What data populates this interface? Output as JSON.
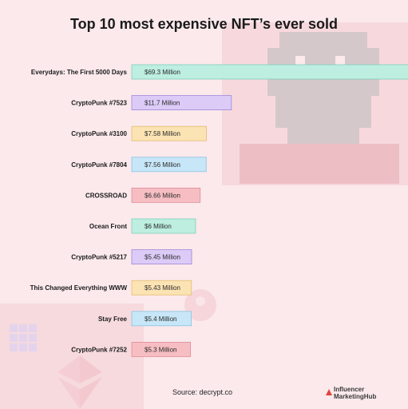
{
  "chart_data": {
    "type": "bar",
    "orientation": "horizontal",
    "title": "Top 10 most expensive NFT’s ever sold",
    "unit": "Million USD",
    "categories": [
      "Everydays: The First 5000 Days",
      "CryptoPunk #7523",
      "CryptoPunk #3100",
      "CryptoPunk #7804",
      "CROSSROAD",
      "Ocean Front",
      "CryptoPunk #5217",
      "This Changed Everything WWW",
      "Stay Free",
      "CryptoPunk #7252"
    ],
    "values": [
      69.3,
      11.7,
      7.58,
      7.56,
      6.66,
      6.0,
      5.45,
      5.43,
      5.4,
      5.3
    ],
    "value_labels": [
      "$69.3 Million",
      "$11.7 Million",
      "$7.58 Million",
      "$7.56 Million",
      "$6.66 Million",
      "$6 Million",
      "$5.45 Million",
      "$5.43 Million",
      "$5.4 Million",
      "$5.3 Million"
    ],
    "xlabel": "",
    "ylabel": "",
    "grid": false,
    "legend": "none",
    "colors": [
      "#bdeee0",
      "#dccbf7",
      "#fbe3b3",
      "#c7e6f7",
      "#f6bec3"
    ]
  },
  "source": "Source: decrypt.co",
  "brand": {
    "line1": "Influencer",
    "line2": "MarketingHub"
  }
}
